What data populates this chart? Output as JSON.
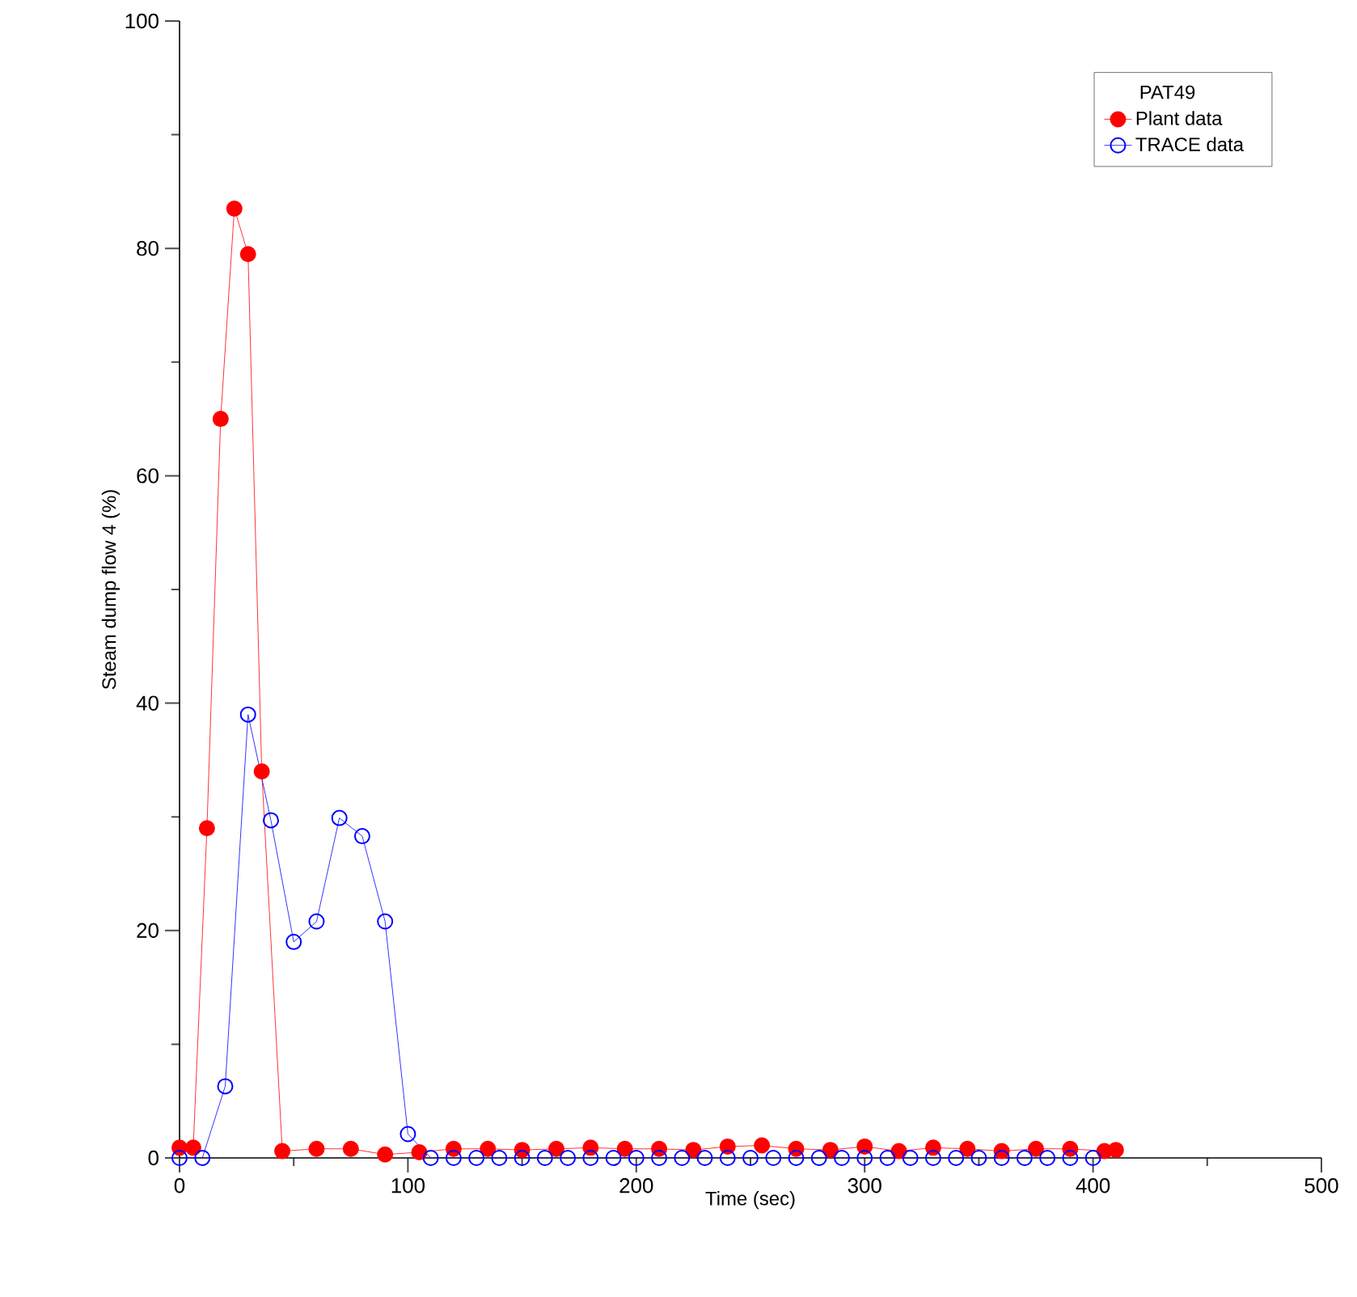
{
  "chart_data": {
    "type": "line",
    "xlabel": "Time (sec)",
    "ylabel": "Steam dump flow 4 (%)",
    "legend_title": "PAT49",
    "xlim": [
      0,
      500
    ],
    "xticks": [
      0,
      100,
      200,
      300,
      400,
      500
    ],
    "ylim": [
      0,
      100
    ],
    "yticks": [
      0,
      20,
      40,
      60,
      80,
      100
    ],
    "grid": false,
    "legend": "top right",
    "marker": "circle",
    "line_style": "solid",
    "series": [
      {
        "name": "Plant data",
        "color": "#ff0000",
        "x": [
          0,
          6,
          12,
          18,
          24,
          30,
          36,
          45,
          60,
          75,
          90,
          105,
          120,
          135,
          150,
          165,
          180,
          195,
          210,
          225,
          240,
          255,
          270,
          285,
          300,
          315,
          330,
          345,
          360,
          375,
          390,
          405,
          410
        ],
        "values": [
          0.9,
          0.9,
          29,
          65,
          83.5,
          79.5,
          34,
          0.6,
          0.8,
          0.8,
          0.3,
          0.5,
          0.8,
          0.8,
          0.7,
          0.8,
          0.9,
          0.8,
          0.8,
          0.7,
          1.0,
          1.1,
          0.8,
          0.7,
          1.0,
          0.6,
          0.9,
          0.8,
          0.6,
          0.8,
          0.8,
          0.6,
          0.7
        ]
      },
      {
        "name": "TRACE data",
        "color": "#0000ff",
        "x": [
          0,
          10,
          20,
          30,
          40,
          50,
          60,
          70,
          80,
          90,
          100,
          110,
          120,
          130,
          140,
          150,
          160,
          170,
          180,
          190,
          200,
          210,
          220,
          230,
          240,
          250,
          260,
          270,
          280,
          290,
          300,
          310,
          320,
          330,
          340,
          350,
          360,
          370,
          380,
          390,
          400
        ],
        "values": [
          0,
          0,
          6.3,
          39,
          29.7,
          19,
          20.8,
          29.9,
          28.3,
          20.8,
          2.1,
          0,
          0,
          0,
          0,
          0,
          0,
          0,
          0,
          0,
          0,
          0,
          0,
          0,
          0,
          0,
          0,
          0,
          0,
          0,
          0,
          0,
          0,
          0,
          0,
          0,
          0,
          0,
          0,
          0,
          0
        ]
      }
    ]
  }
}
